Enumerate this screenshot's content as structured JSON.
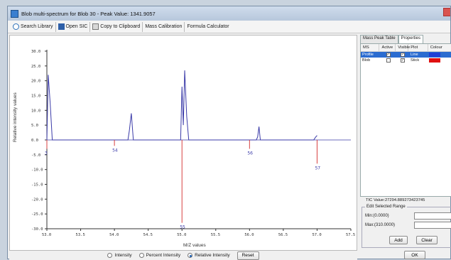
{
  "window": {
    "title": "Blob multi-spectrum for Blob 30 - Peak Value: 1341.9057"
  },
  "toolbar": {
    "search_library": "Search Library",
    "open_sic": "Open SIC",
    "copy_clipboard": "Copy to Clipboard",
    "mass_calibration": "Mass Calibration",
    "formula_calculator": "Formula Calculator"
  },
  "plot": {
    "ylabel": "Relative intensity values",
    "xlabel": "M/Z values",
    "y_ticks": [
      "30.0",
      "25.0",
      "20.0",
      "15.0",
      "10.0",
      "5.0",
      "0.0",
      "-5.0",
      "-10.0",
      "-15.0",
      "-20.0",
      "-25.0",
      "-30.0"
    ],
    "x_ticks": [
      "53.0",
      "53.5",
      "54.0",
      "54.5",
      "55.0",
      "55.5",
      "56.0",
      "56.5",
      "57.0",
      "57.5"
    ],
    "peak_labels": [
      "3",
      "54",
      "55",
      "56",
      "57"
    ],
    "colors": {
      "profile": "#3a3aa8",
      "blob": "#d84040",
      "axis": "#333333"
    }
  },
  "chart_data": {
    "type": "line",
    "xlabel": "M/Z values",
    "ylabel": "Relative intensity values",
    "xlim": [
      53.0,
      57.5
    ],
    "ylim": [
      -30.0,
      30.0
    ],
    "series": [
      {
        "name": "Profile",
        "x": [
          53.0,
          53.02,
          53.05,
          53.08,
          54.2,
          54.22,
          54.25,
          54.28,
          54.98,
          55.0,
          55.02,
          55.04,
          55.07,
          55.1,
          56.1,
          56.12,
          56.14,
          56.16,
          56.95,
          56.98,
          57.0
        ],
        "y": [
          0,
          22.0,
          12.0,
          0,
          0,
          3.0,
          9.0,
          0,
          0,
          18.0,
          5.0,
          23.5,
          8.0,
          0,
          0,
          1.0,
          4.5,
          0,
          0,
          1.0,
          1.5
        ]
      },
      {
        "name": "Blob",
        "x": [
          53.0,
          54.0,
          55.0,
          56.0,
          57.0
        ],
        "y": [
          -3.0,
          -2.0,
          -28.0,
          -3.0,
          -8.0
        ]
      }
    ],
    "peak_labels": [
      {
        "x": 53.0,
        "label": "3"
      },
      {
        "x": 54.0,
        "label": "54"
      },
      {
        "x": 55.0,
        "label": "55"
      },
      {
        "x": 56.0,
        "label": "56"
      },
      {
        "x": 57.0,
        "label": "57"
      }
    ]
  },
  "controls": {
    "radio_intensity": "Intensity",
    "radio_percent": "Percent Intensity",
    "radio_relative": "Relative Intensity",
    "selected": "Relative Intensity",
    "reset": "Reset"
  },
  "side": {
    "tabs": [
      "Mass Peak Table",
      "Properties"
    ],
    "active_tab": "Properties",
    "columns": [
      "MS",
      "Active",
      "Visible",
      "Plot",
      "Colour"
    ],
    "rows": [
      {
        "ms": "Profile",
        "active": true,
        "visible": true,
        "plot": "Line",
        "colour": "#1f3fd6"
      },
      {
        "ms": "Blob",
        "active": false,
        "visible": true,
        "plot": "Stick",
        "colour": "#e01010"
      }
    ],
    "tic_value": "TIC Value:27294.889273423745",
    "edit_range_title": "Edit Selected Range",
    "min_label": "Min:(0.0000)",
    "max_label": "Max:(310.0000)",
    "add": "Add",
    "clear": "Clear",
    "ok": "OK"
  }
}
